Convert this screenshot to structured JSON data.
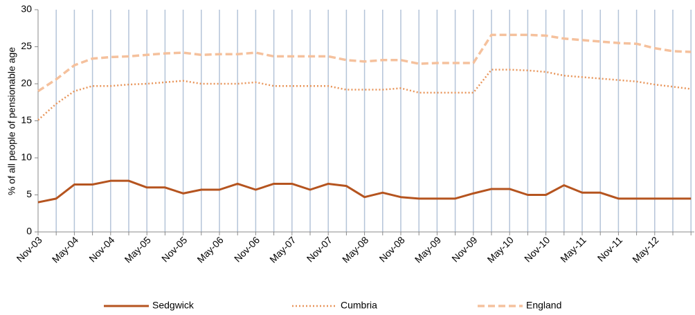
{
  "chart_data": {
    "type": "line",
    "y_label": "% of all people of pensionable age",
    "categories": [
      "Nov-03",
      null,
      "May-04",
      null,
      "Nov-04",
      null,
      "May-05",
      null,
      "Nov-05",
      null,
      "May-06",
      null,
      "Nov-06",
      null,
      "May-07",
      null,
      "Nov-07",
      null,
      "May-08",
      null,
      "Nov-08",
      null,
      "May-09",
      null,
      "Nov-09",
      null,
      "May-10",
      null,
      "Nov-10",
      null,
      "May-11",
      null,
      "Nov-11",
      null,
      "May-12",
      null,
      null
    ],
    "series": [
      {
        "name": "Sedgwick",
        "color": "#b5541f",
        "line_style": "solid",
        "values": [
          4.0,
          4.5,
          6.4,
          6.4,
          6.9,
          6.9,
          6.0,
          6.0,
          5.2,
          5.7,
          5.7,
          6.5,
          5.7,
          6.5,
          6.5,
          5.7,
          6.5,
          6.2,
          4.7,
          5.3,
          4.7,
          4.5,
          4.5,
          4.5,
          5.2,
          5.8,
          5.8,
          5.0,
          5.0,
          6.3,
          5.3,
          5.3,
          4.5,
          4.5,
          4.5,
          4.5,
          4.5
        ]
      },
      {
        "name": "Cumbria",
        "color": "#e8955a",
        "line_style": "dotted",
        "values": [
          15.1,
          17.3,
          19.0,
          19.7,
          19.7,
          19.9,
          20.0,
          20.2,
          20.4,
          20.0,
          20.0,
          20.0,
          20.2,
          19.7,
          19.7,
          19.7,
          19.7,
          19.2,
          19.2,
          19.2,
          19.4,
          18.8,
          18.8,
          18.8,
          18.8,
          21.9,
          21.9,
          21.8,
          21.6,
          21.1,
          20.9,
          20.7,
          20.5,
          20.3,
          19.9,
          19.6,
          19.3
        ]
      },
      {
        "name": "England",
        "color": "#f5c19d",
        "line_style": "dashed",
        "values": [
          19.0,
          20.6,
          22.5,
          23.4,
          23.6,
          23.7,
          23.9,
          24.1,
          24.2,
          23.9,
          24.0,
          24.0,
          24.2,
          23.7,
          23.7,
          23.7,
          23.7,
          23.2,
          23.0,
          23.2,
          23.2,
          22.7,
          22.8,
          22.8,
          22.8,
          26.6,
          26.6,
          26.6,
          26.5,
          26.1,
          25.9,
          25.7,
          25.5,
          25.4,
          24.8,
          24.4,
          24.3
        ]
      }
    ],
    "ylim": [
      0,
      30
    ],
    "yticks": [
      0,
      5,
      10,
      15,
      20,
      25,
      30
    ],
    "grid": true,
    "legend": "bottom"
  }
}
